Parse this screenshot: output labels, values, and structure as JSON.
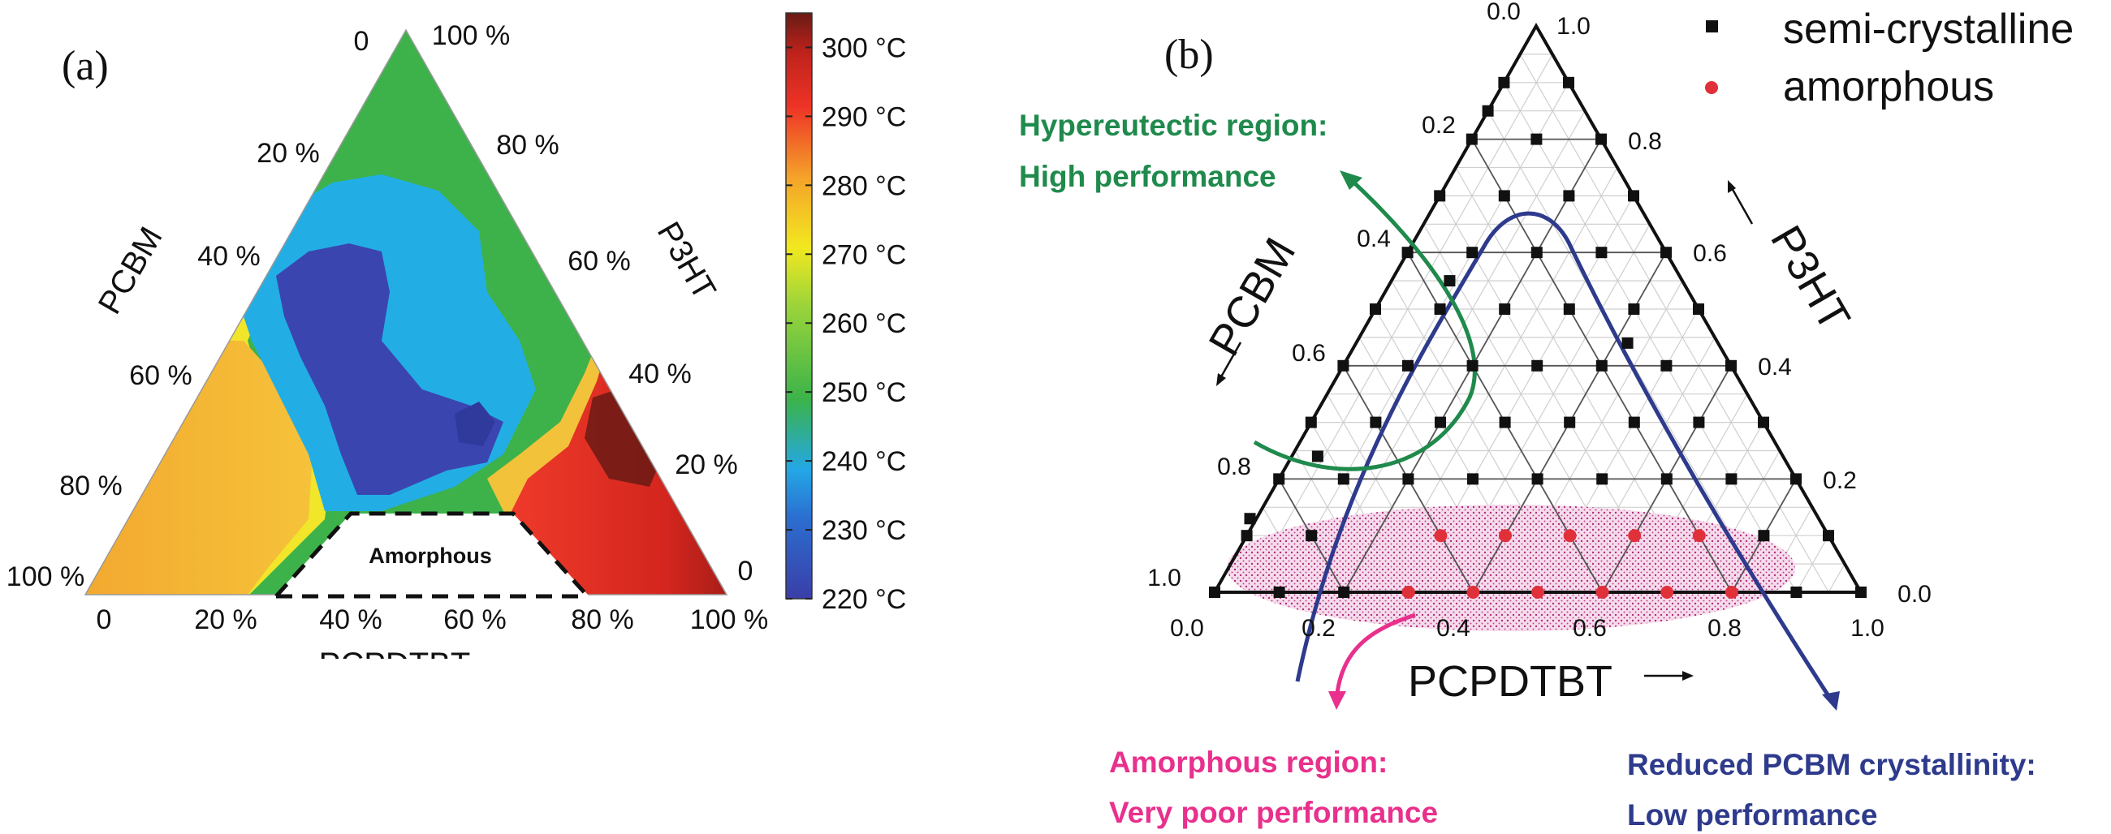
{
  "panel_a": {
    "label": "(a)",
    "axes": {
      "left": "PCBM",
      "right": "P3HT",
      "bottom": "PCPDTBT"
    },
    "left_ticks": [
      "0",
      "20 %",
      "40 %",
      "60 %",
      "80 %",
      "100 %"
    ],
    "right_ticks": [
      "100 %",
      "80 %",
      "60 %",
      "40 %",
      "20 %",
      "0"
    ],
    "bottom_ticks": [
      "0",
      "20 %",
      "40 %",
      "60 %",
      "80 %",
      "100 %"
    ],
    "amorphous_label": "Amorphous",
    "colorbar": {
      "ticks": [
        "300 °C",
        "290 °C",
        "280 °C",
        "270 °C",
        "260 °C",
        "250 °C",
        "240 °C",
        "230 °C",
        "220 °C"
      ],
      "range": [
        220,
        305
      ],
      "colors": [
        "#3a3ea8",
        "#24a7e6",
        "#3bb34a",
        "#f2e81f",
        "#f5a22a",
        "#ee3326",
        "#6a1a14"
      ]
    }
  },
  "panel_b": {
    "label": "(b)",
    "axes": {
      "left": "PCBM",
      "right": "P3HT",
      "bottom": "PCPDTBT"
    },
    "left_ticks": [
      "0.0",
      "0.2",
      "0.4",
      "0.6",
      "0.8",
      "1.0"
    ],
    "right_ticks": [
      "1.0",
      "0.8",
      "0.6",
      "0.4",
      "0.2",
      "0.0"
    ],
    "bottom_ticks": [
      "0.0",
      "0.2",
      "0.4",
      "0.6",
      "0.8",
      "1.0"
    ],
    "legend": [
      {
        "label": "semi-crystalline",
        "color": "#111111"
      },
      {
        "label": "amorphous",
        "color": "#e0303a"
      }
    ],
    "annotations": {
      "hypereutectic": {
        "line1": "Hypereutectic region:",
        "line2": "High performance",
        "color": "#1f8a4c"
      },
      "amorphous": {
        "line1": "Amorphous region:",
        "line2": "Very poor performance",
        "color": "#e8308c"
      },
      "reduced": {
        "line1": "Reduced PCBM crystallinity:",
        "line2": "Low performance",
        "color": "#2e3a8c"
      }
    }
  },
  "chart_data": [
    {
      "type": "heatmap",
      "subtype": "ternary",
      "axes": [
        "PCBM",
        "P3HT",
        "PCPDTBT"
      ],
      "value_label": "temperature",
      "colorbar_range": [
        220,
        305
      ],
      "colorbar_ticks": [
        220,
        230,
        240,
        250,
        260,
        270,
        280,
        290,
        300
      ],
      "unit": "°C",
      "amorphous_region": "PCPDTBT 25–85 %, P3HT < 15 %"
    },
    {
      "type": "scatter",
      "subtype": "ternary",
      "axes": [
        "PCBM",
        "P3HT",
        "PCPDTBT"
      ],
      "series": [
        {
          "name": "semi-crystalline",
          "points": [
            [
              0.1,
              0.9
            ],
            [
              0.0,
              0.9
            ],
            [
              0.2,
              0.8
            ],
            [
              0.1,
              0.8
            ],
            [
              0.0,
              0.8
            ],
            [
              0.3,
              0.7
            ],
            [
              0.2,
              0.7
            ],
            [
              0.1,
              0.7
            ],
            [
              0.0,
              0.7
            ],
            [
              0.4,
              0.6
            ],
            [
              0.3,
              0.6
            ],
            [
              0.2,
              0.6
            ],
            [
              0.1,
              0.6
            ],
            [
              0.0,
              0.6
            ],
            [
              0.5,
              0.5
            ],
            [
              0.4,
              0.5
            ],
            [
              0.3,
              0.5
            ],
            [
              0.2,
              0.5
            ],
            [
              0.1,
              0.5
            ],
            [
              0.0,
              0.5
            ],
            [
              0.6,
              0.4
            ],
            [
              0.5,
              0.4
            ],
            [
              0.4,
              0.4
            ],
            [
              0.3,
              0.4
            ],
            [
              0.2,
              0.4
            ],
            [
              0.1,
              0.4
            ],
            [
              0.0,
              0.4
            ],
            [
              0.7,
              0.3
            ],
            [
              0.6,
              0.3
            ],
            [
              0.5,
              0.3
            ],
            [
              0.4,
              0.3
            ],
            [
              0.3,
              0.3
            ],
            [
              0.2,
              0.3
            ],
            [
              0.1,
              0.3
            ],
            [
              0.0,
              0.3
            ],
            [
              0.8,
              0.2
            ],
            [
              0.7,
              0.2
            ],
            [
              0.6,
              0.2
            ],
            [
              0.5,
              0.2
            ],
            [
              0.4,
              0.2
            ],
            [
              0.3,
              0.2
            ],
            [
              0.2,
              0.2
            ],
            [
              0.1,
              0.2
            ],
            [
              0.0,
              0.2
            ],
            [
              0.9,
              0.1
            ],
            [
              0.8,
              0.1
            ],
            [
              0.1,
              0.1
            ],
            [
              0.0,
              0.1
            ],
            [
              1.0,
              0.0
            ],
            [
              0.9,
              0.0
            ],
            [
              0.8,
              0.0
            ],
            [
              0.1,
              0.0
            ],
            [
              0.0,
              0.0
            ],
            [
              0.15,
              0.85
            ],
            [
              0.36,
              0.55
            ],
            [
              0.14,
              0.44
            ],
            [
              0.72,
              0.24
            ],
            [
              0.88,
              0.13
            ]
          ]
        },
        {
          "name": "amorphous",
          "points": [
            [
              0.6,
              0.1
            ],
            [
              0.5,
              0.1
            ],
            [
              0.4,
              0.1
            ],
            [
              0.3,
              0.1
            ],
            [
              0.2,
              0.1
            ],
            [
              0.7,
              0.0
            ],
            [
              0.6,
              0.0
            ],
            [
              0.5,
              0.0
            ],
            [
              0.4,
              0.0
            ],
            [
              0.3,
              0.0
            ],
            [
              0.2,
              0.0
            ]
          ]
        }
      ]
    }
  ]
}
